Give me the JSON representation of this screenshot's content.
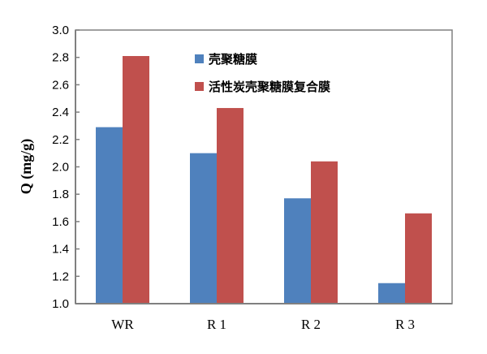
{
  "chart_data": {
    "type": "bar",
    "title": "",
    "xlabel": "",
    "ylabel": "Q (mg/g)",
    "ylim": [
      1.0,
      3.0
    ],
    "yticks": [
      "1.0",
      "1.2",
      "1.4",
      "1.6",
      "1.8",
      "2.0",
      "2.2",
      "2.4",
      "2.6",
      "2.8",
      "3.0"
    ],
    "categories": [
      "WR",
      "R 1",
      "R 2",
      "R 3"
    ],
    "series": [
      {
        "name": "壳聚糖膜",
        "color": "#4f81bd",
        "values": [
          2.29,
          2.1,
          1.77,
          1.15
        ]
      },
      {
        "name": "活性炭壳聚糖膜复合膜",
        "color": "#c0504d",
        "values": [
          2.81,
          2.43,
          2.04,
          1.66
        ]
      }
    ],
    "grid": false,
    "legend_position": "top-center"
  }
}
